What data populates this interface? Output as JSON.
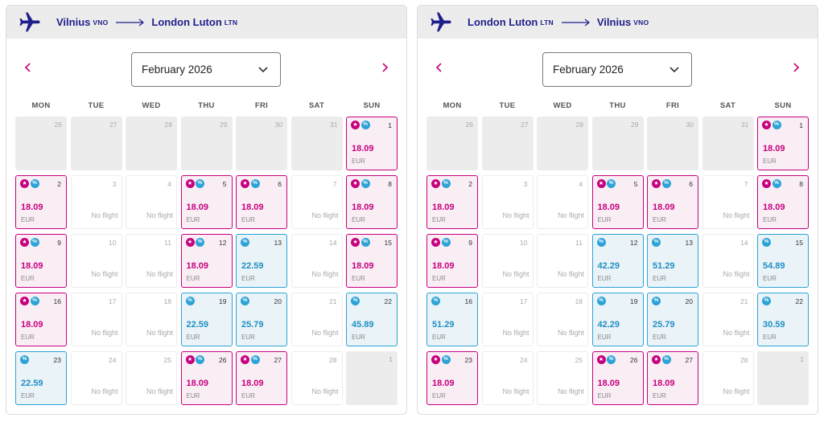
{
  "colors": {
    "brand_pink": "#c6007e",
    "discount_blue": "#2ba3d6",
    "route_navy": "#1f1f8c"
  },
  "panels": [
    {
      "origin_city": "Vilnius",
      "origin_code": "VNO",
      "dest_city": "London Luton",
      "dest_code": "LTN",
      "month": "February 2026",
      "prev_icon": "chevron-left-icon",
      "next_icon": "chevron-right-icon",
      "weekdays": [
        "MON",
        "TUE",
        "WED",
        "THU",
        "FRI",
        "SAT",
        "SUN"
      ],
      "days": [
        {
          "day": "26",
          "kind": "out"
        },
        {
          "day": "27",
          "kind": "out"
        },
        {
          "day": "28",
          "kind": "out"
        },
        {
          "day": "29",
          "kind": "out"
        },
        {
          "day": "30",
          "kind": "out"
        },
        {
          "day": "31",
          "kind": "out"
        },
        {
          "day": "1",
          "kind": "pink",
          "price": "18.09",
          "currency": "EUR"
        },
        {
          "day": "2",
          "kind": "pink",
          "price": "18.09",
          "currency": "EUR"
        },
        {
          "day": "3",
          "kind": "nf",
          "label": "No flight"
        },
        {
          "day": "4",
          "kind": "nf",
          "label": "No flight"
        },
        {
          "day": "5",
          "kind": "pink",
          "price": "18.09",
          "currency": "EUR"
        },
        {
          "day": "6",
          "kind": "pink",
          "price": "18.09",
          "currency": "EUR"
        },
        {
          "day": "7",
          "kind": "nf",
          "label": "No flight"
        },
        {
          "day": "8",
          "kind": "pink",
          "price": "18.09",
          "currency": "EUR"
        },
        {
          "day": "9",
          "kind": "pink",
          "price": "18.09",
          "currency": "EUR"
        },
        {
          "day": "10",
          "kind": "nf",
          "label": "No flight"
        },
        {
          "day": "11",
          "kind": "nf",
          "label": "No flight"
        },
        {
          "day": "12",
          "kind": "pink",
          "price": "18.09",
          "currency": "EUR"
        },
        {
          "day": "13",
          "kind": "blue",
          "price": "22.59",
          "currency": "EUR"
        },
        {
          "day": "14",
          "kind": "nf",
          "label": "No flight"
        },
        {
          "day": "15",
          "kind": "pink",
          "price": "18.09",
          "currency": "EUR"
        },
        {
          "day": "16",
          "kind": "pink",
          "price": "18.09",
          "currency": "EUR"
        },
        {
          "day": "17",
          "kind": "nf",
          "label": "No flight"
        },
        {
          "day": "18",
          "kind": "nf",
          "label": "No flight"
        },
        {
          "day": "19",
          "kind": "blue",
          "price": "22.59",
          "currency": "EUR"
        },
        {
          "day": "20",
          "kind": "blue",
          "price": "25.79",
          "currency": "EUR"
        },
        {
          "day": "21",
          "kind": "nf",
          "label": "No flight"
        },
        {
          "day": "22",
          "kind": "blue",
          "price": "45.89",
          "currency": "EUR"
        },
        {
          "day": "23",
          "kind": "blue",
          "price": "22.59",
          "currency": "EUR"
        },
        {
          "day": "24",
          "kind": "nf",
          "label": "No flight"
        },
        {
          "day": "25",
          "kind": "nf",
          "label": "No flight"
        },
        {
          "day": "26",
          "kind": "pink",
          "price": "18.09",
          "currency": "EUR"
        },
        {
          "day": "27",
          "kind": "pink",
          "price": "18.09",
          "currency": "EUR"
        },
        {
          "day": "28",
          "kind": "nf",
          "label": "No flight"
        },
        {
          "day": "1",
          "kind": "out"
        }
      ]
    },
    {
      "origin_city": "London Luton",
      "origin_code": "LTN",
      "dest_city": "Vilnius",
      "dest_code": "VNO",
      "month": "February 2026",
      "prev_icon": "chevron-left-icon",
      "next_icon": "chevron-right-icon",
      "weekdays": [
        "MON",
        "TUE",
        "WED",
        "THU",
        "FRI",
        "SAT",
        "SUN"
      ],
      "days": [
        {
          "day": "26",
          "kind": "out"
        },
        {
          "day": "27",
          "kind": "out"
        },
        {
          "day": "28",
          "kind": "out"
        },
        {
          "day": "29",
          "kind": "out"
        },
        {
          "day": "30",
          "kind": "out"
        },
        {
          "day": "31",
          "kind": "out"
        },
        {
          "day": "1",
          "kind": "pink",
          "price": "18.09",
          "currency": "EUR"
        },
        {
          "day": "2",
          "kind": "pink",
          "price": "18.09",
          "currency": "EUR"
        },
        {
          "day": "3",
          "kind": "nf",
          "label": "No flight"
        },
        {
          "day": "4",
          "kind": "nf",
          "label": "No flight"
        },
        {
          "day": "5",
          "kind": "pink",
          "price": "18.09",
          "currency": "EUR"
        },
        {
          "day": "6",
          "kind": "pink",
          "price": "18.09",
          "currency": "EUR"
        },
        {
          "day": "7",
          "kind": "nf",
          "label": "No flight"
        },
        {
          "day": "8",
          "kind": "pink",
          "price": "18.09",
          "currency": "EUR"
        },
        {
          "day": "9",
          "kind": "pink",
          "price": "18.09",
          "currency": "EUR"
        },
        {
          "day": "10",
          "kind": "nf",
          "label": "No flight"
        },
        {
          "day": "11",
          "kind": "nf",
          "label": "No flight"
        },
        {
          "day": "12",
          "kind": "blue",
          "price": "42.29",
          "currency": "EUR"
        },
        {
          "day": "13",
          "kind": "blue",
          "price": "51.29",
          "currency": "EUR"
        },
        {
          "day": "14",
          "kind": "nf",
          "label": "No flight"
        },
        {
          "day": "15",
          "kind": "blue",
          "price": "54.89",
          "currency": "EUR"
        },
        {
          "day": "16",
          "kind": "blue",
          "price": "51.29",
          "currency": "EUR"
        },
        {
          "day": "17",
          "kind": "nf",
          "label": "No flight"
        },
        {
          "day": "18",
          "kind": "nf",
          "label": "No flight"
        },
        {
          "day": "19",
          "kind": "blue",
          "price": "42.29",
          "currency": "EUR"
        },
        {
          "day": "20",
          "kind": "blue",
          "price": "25.79",
          "currency": "EUR"
        },
        {
          "day": "21",
          "kind": "nf",
          "label": "No flight"
        },
        {
          "day": "22",
          "kind": "blue",
          "price": "30.59",
          "currency": "EUR"
        },
        {
          "day": "23",
          "kind": "pink",
          "price": "18.09",
          "currency": "EUR"
        },
        {
          "day": "24",
          "kind": "nf",
          "label": "No flight"
        },
        {
          "day": "25",
          "kind": "nf",
          "label": "No flight"
        },
        {
          "day": "26",
          "kind": "pink",
          "price": "18.09",
          "currency": "EUR"
        },
        {
          "day": "27",
          "kind": "pink",
          "price": "18.09",
          "currency": "EUR"
        },
        {
          "day": "28",
          "kind": "nf",
          "label": "No flight"
        },
        {
          "day": "1",
          "kind": "out"
        }
      ]
    }
  ]
}
